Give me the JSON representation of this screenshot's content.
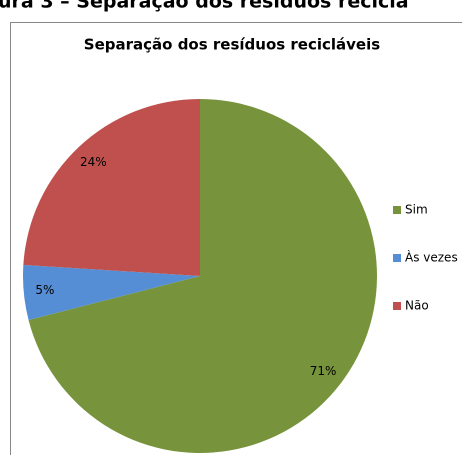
{
  "figure_caption": "ura 3 – Separação dos resíduos reciclá",
  "chart_data": {
    "type": "pie",
    "title": "Separação dos resíduos recicláveis",
    "categories": [
      "Sim",
      "Às vezes",
      "Não"
    ],
    "values": [
      71,
      5,
      24
    ],
    "value_labels": [
      "71%",
      "5%",
      "24%"
    ],
    "colors": [
      "#77933c",
      "#558ed5",
      "#c0504d"
    ],
    "legend": "right"
  }
}
